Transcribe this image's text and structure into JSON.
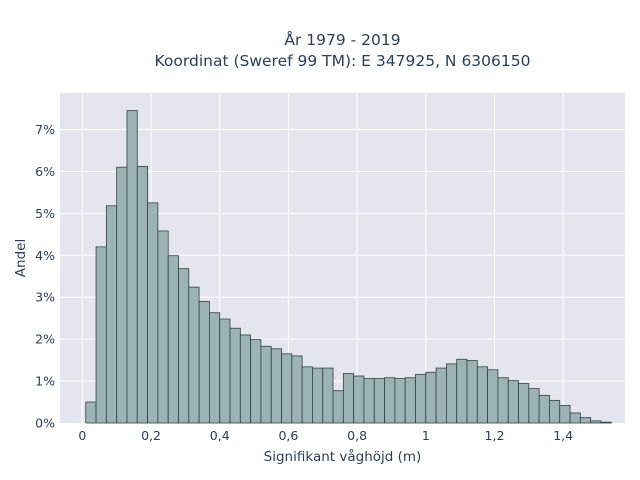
{
  "chart_data": {
    "type": "bar",
    "title_line1": "År 1979 - 2019",
    "title_line2": "Koordinat (Sweref 99 TM): E 347925, N 6306150",
    "xlabel": "Signifikant våghöjd (m)",
    "ylabel": "Andel",
    "bin_width": 0.03,
    "bin_start": 0.01,
    "xlim": [
      -0.065,
      1.58
    ],
    "ylim": [
      0,
      0.0787
    ],
    "x_ticks": [
      0,
      0.2,
      0.4,
      0.6,
      0.8,
      1,
      1.2,
      1.4
    ],
    "x_tick_labels": [
      "0",
      "0,2",
      "0,4",
      "0,6",
      "0,8",
      "1",
      "1,2",
      "1,4"
    ],
    "y_ticks": [
      0,
      0.01,
      0.02,
      0.03,
      0.04,
      0.05,
      0.06,
      0.07
    ],
    "y_tick_labels": [
      "0%",
      "1%",
      "2%",
      "3%",
      "4%",
      "5%",
      "6%",
      "7%"
    ],
    "values": [
      0.005,
      0.042,
      0.0518,
      0.061,
      0.0745,
      0.0612,
      0.0525,
      0.0458,
      0.0399,
      0.0368,
      0.0324,
      0.029,
      0.0263,
      0.0248,
      0.0226,
      0.021,
      0.0199,
      0.0183,
      0.0177,
      0.0165,
      0.016,
      0.0134,
      0.0131,
      0.0131,
      0.0077,
      0.0118,
      0.0112,
      0.0106,
      0.0106,
      0.0108,
      0.0106,
      0.0108,
      0.0116,
      0.0121,
      0.0131,
      0.0141,
      0.0152,
      0.0149,
      0.0134,
      0.0127,
      0.0108,
      0.0101,
      0.0094,
      0.0082,
      0.0066,
      0.0054,
      0.0042,
      0.0024,
      0.0013,
      0.0005,
      0.0002
    ]
  }
}
